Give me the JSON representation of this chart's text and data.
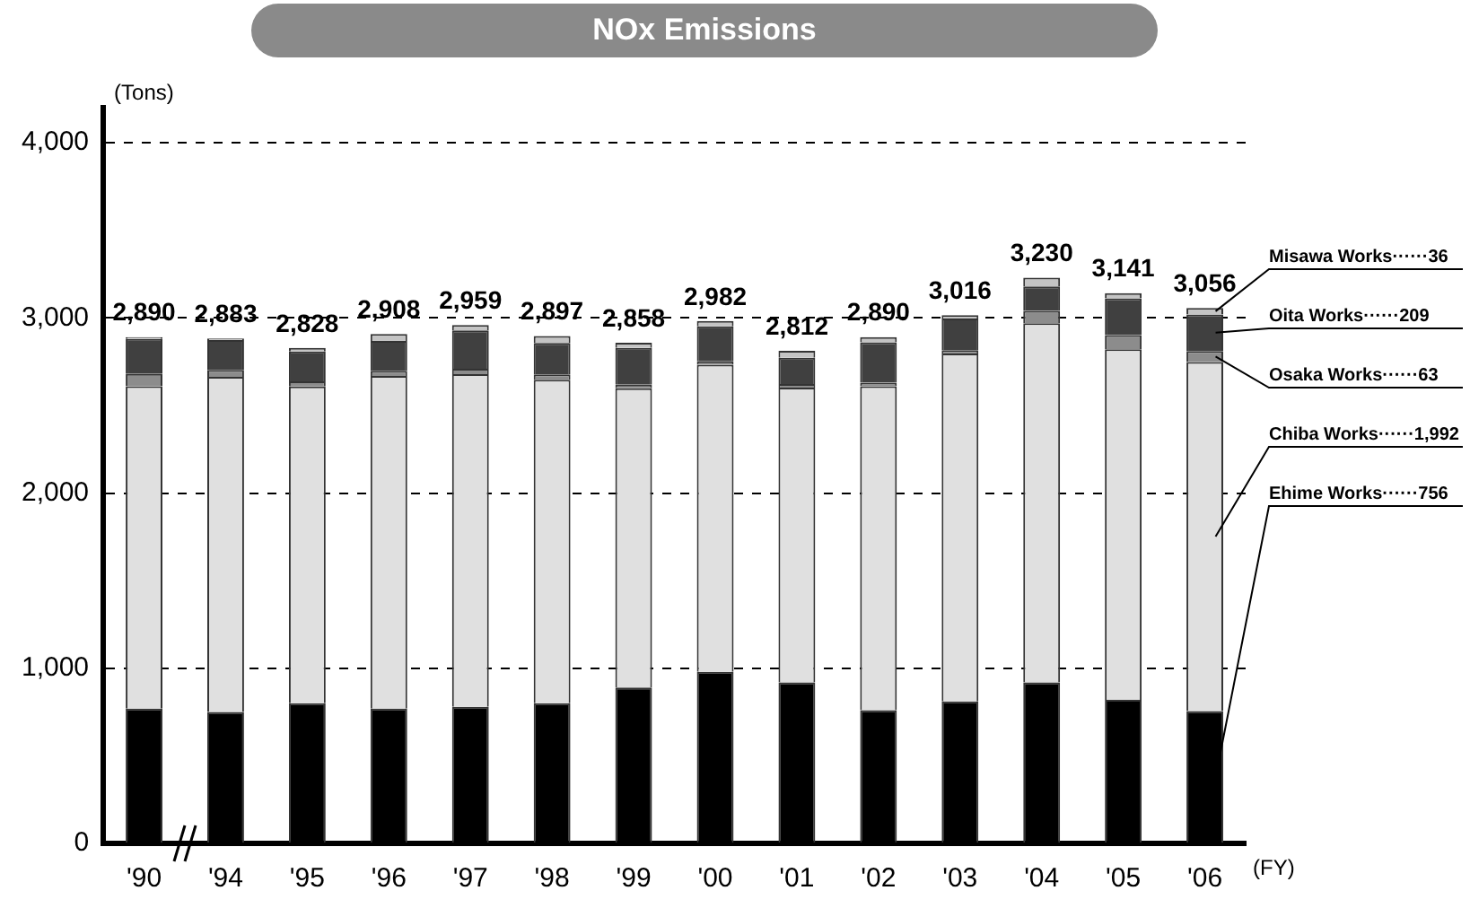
{
  "chart_data": {
    "type": "bar",
    "title": "NOx Emissions",
    "ylabel": "(Tons)",
    "xlabel": "(FY)",
    "categories": [
      "'90",
      "'94",
      "'95",
      "'96",
      "'97",
      "'98",
      "'99",
      "'00",
      "'01",
      "'02",
      "'03",
      "'04",
      "'05",
      "'06"
    ],
    "stacked": true,
    "series": [
      {
        "name": "Ehime Works······756",
        "color": "#000000",
        "values": [
          770,
          750,
          800,
          770,
          780,
          800,
          890,
          980,
          920,
          760,
          810,
          920,
          820,
          756
        ]
      },
      {
        "name": "Chiba Works······1,992",
        "color": "#e0e0e0",
        "values": [
          1840,
          1913,
          1808,
          1898,
          1899,
          1847,
          1708,
          1752,
          1682,
          1850,
          1986,
          2050,
          2001,
          1992
        ]
      },
      {
        "name": "Osaka Works······63",
        "color": "#8c8c8c",
        "values": [
          70,
          40,
          30,
          30,
          30,
          30,
          20,
          20,
          20,
          20,
          20,
          70,
          80,
          63
        ]
      },
      {
        "name": "Oita Works······209",
        "color": "#404040",
        "values": [
          200,
          170,
          170,
          170,
          220,
          180,
          210,
          200,
          150,
          230,
          180,
          140,
          210,
          209
        ]
      },
      {
        "name": "Misawa Works······36",
        "color": "#c4c4c4",
        "values": [
          10,
          10,
          20,
          40,
          30,
          40,
          30,
          30,
          40,
          30,
          20,
          50,
          30,
          36
        ]
      }
    ],
    "totals": [
      "2,890",
      "2,883",
      "2,828",
      "2,908",
      "2,959",
      "2,897",
      "2,858",
      "2,982",
      "2,812",
      "2,890",
      "3,016",
      "3,230",
      "3,141",
      "3,056"
    ],
    "ylim": [
      0,
      4200
    ],
    "yticks": [
      0,
      {
        "value": 1000,
        "label": "1,000"
      },
      {
        "value": 2000,
        "label": "2,000"
      },
      {
        "value": 3000,
        "label": "3,000"
      },
      {
        "value": 4000,
        "label": "4,000"
      }
    ],
    "grid": "y"
  }
}
